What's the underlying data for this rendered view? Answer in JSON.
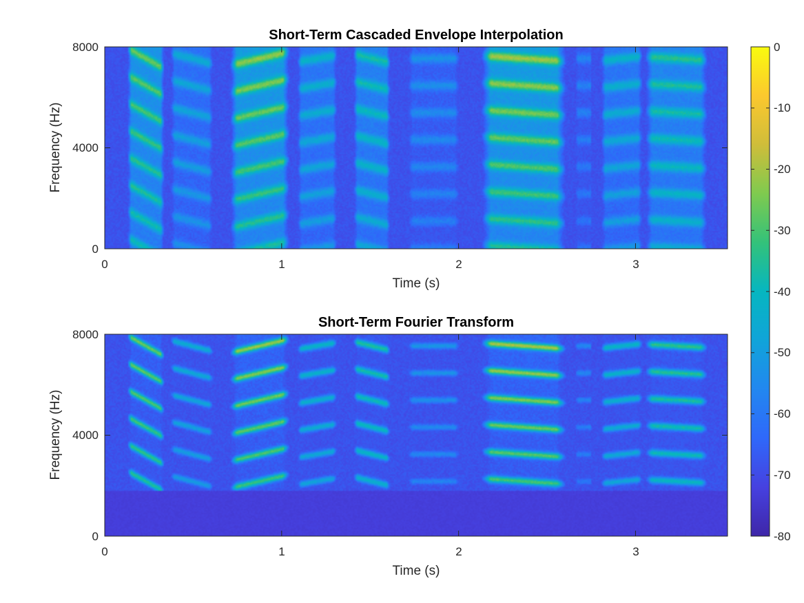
{
  "chart_data": [
    {
      "type": "heatmap",
      "title": "Short-Term Cascaded Envelope Interpolation",
      "xlabel": "Time (s)",
      "ylabel": "Frequency (Hz)",
      "xlim": [
        0,
        3.52
      ],
      "ylim": [
        0,
        8000
      ],
      "xticks": [
        0,
        1,
        2,
        3
      ],
      "yticks": [
        0,
        4000,
        8000
      ],
      "xtick_labels": [
        "0",
        "1",
        "2",
        "3"
      ],
      "ytick_labels": [
        "0",
        "4000",
        "8000"
      ],
      "value_units": "dB",
      "clim": [
        -80,
        0
      ],
      "fourier": false
    },
    {
      "type": "heatmap",
      "title": "Short-Term Fourier Transform",
      "xlabel": "Time (s)",
      "ylabel": "Frequency (Hz)",
      "xlim": [
        0,
        3.52
      ],
      "ylim": [
        0,
        8000
      ],
      "xticks": [
        0,
        1,
        2,
        3
      ],
      "yticks": [
        0,
        4000,
        8000
      ],
      "xtick_labels": [
        "0",
        "1",
        "2",
        "3"
      ],
      "ytick_labels": [
        "0",
        "4000",
        "8000"
      ],
      "value_units": "dB",
      "clim": [
        -80,
        0
      ],
      "fourier": true,
      "floor_below_hz": 1800
    }
  ],
  "colorbar": {
    "colormap": "parula",
    "clim": [
      -80,
      0
    ],
    "ticks": [
      0,
      -10,
      -20,
      -30,
      -40,
      -50,
      -60,
      -70,
      -80
    ],
    "tick_labels": [
      "0",
      "-10",
      "-20",
      "-30",
      "-40",
      "-50",
      "-60",
      "-70",
      "-80"
    ]
  },
  "segments": [
    {
      "t0": 0.12,
      "t1": 0.34,
      "level": 0.72,
      "slope": 0.9
    },
    {
      "t0": 0.36,
      "t1": 0.62,
      "level": 0.45,
      "slope": 0.5
    },
    {
      "t0": 0.7,
      "t1": 1.05,
      "level": 0.78,
      "slope": -0.6
    },
    {
      "t0": 1.08,
      "t1": 1.32,
      "level": 0.5,
      "slope": -0.3
    },
    {
      "t0": 1.4,
      "t1": 1.62,
      "level": 0.58,
      "slope": 0.4
    },
    {
      "t0": 1.7,
      "t1": 2.02,
      "level": 0.35,
      "slope": 0.0
    },
    {
      "t0": 2.12,
      "t1": 2.62,
      "level": 0.8,
      "slope": 0.25
    },
    {
      "t0": 2.66,
      "t1": 2.76,
      "level": 0.3,
      "slope": 0.0
    },
    {
      "t0": 2.8,
      "t1": 3.05,
      "level": 0.5,
      "slope": -0.2
    },
    {
      "t0": 3.05,
      "t1": 3.42,
      "level": 0.62,
      "slope": 0.15
    }
  ]
}
